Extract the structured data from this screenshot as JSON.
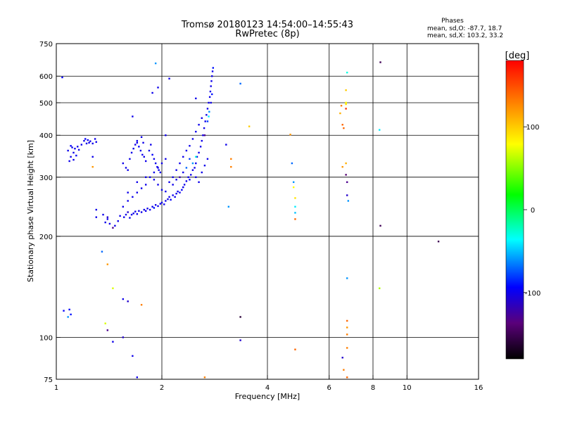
{
  "header": {
    "title_line1": "Tromsø 20180123 14:54:00–14:55:43",
    "title_line2": "RwPretec (8p)",
    "phase_title": "Phases",
    "phase_line1": "mean, sd,O: -87.7, 18.7",
    "phase_line2": "mean, sd,X: 103.2, 33.2"
  },
  "colorbar": {
    "label": "[deg]",
    "range": [
      -180,
      180
    ],
    "ticks": [
      100,
      0,
      -100
    ]
  },
  "chart_data": {
    "type": "scatter",
    "title": "Tromsø 20180123 14:54:00–14:55:43",
    "subtitle": "RwPretec (8p)",
    "xlabel": "Frequency [MHz]",
    "ylabel": "Stationary phase Virtual Height [km]",
    "x_scale": "log",
    "y_scale": "log",
    "xlim": [
      1,
      16
    ],
    "ylim": [
      75,
      750
    ],
    "xticks": [
      1,
      2,
      4,
      6,
      8,
      10,
      16
    ],
    "yticks": [
      75,
      100,
      200,
      300,
      400,
      500,
      600,
      750
    ],
    "x_gridlines": [
      2,
      4,
      6,
      8,
      10
    ],
    "y_gridlines": [
      100,
      200,
      300,
      400,
      500,
      600
    ],
    "grid": true,
    "color_scale": "phase in degrees, -180 (black) to +180 (red)",
    "series": [
      {
        "points": [
          [
            1.04,
            595,
            -95
          ],
          [
            1.05,
            120,
            -95
          ],
          [
            1.08,
            360,
            -100
          ],
          [
            1.09,
            335,
            -100
          ],
          [
            1.1,
            372,
            -95
          ],
          [
            1.1,
            345,
            -100
          ],
          [
            1.11,
            368,
            -100
          ],
          [
            1.12,
            338,
            -100
          ],
          [
            1.12,
            355,
            -100
          ],
          [
            1.13,
            365,
            -100
          ],
          [
            1.14,
            348,
            -95
          ],
          [
            1.15,
            370,
            -100
          ],
          [
            1.16,
            362,
            -100
          ],
          [
            1.08,
            115,
            -60
          ],
          [
            1.09,
            121,
            -95
          ],
          [
            1.1,
            117,
            -90
          ],
          [
            1.18,
            375,
            -100
          ],
          [
            1.2,
            385,
            -100
          ],
          [
            1.21,
            390,
            -95
          ],
          [
            1.22,
            378,
            -100
          ],
          [
            1.23,
            387,
            -100
          ],
          [
            1.24,
            380,
            -100
          ],
          [
            1.25,
            384,
            -100
          ],
          [
            1.27,
            378,
            -100
          ],
          [
            1.29,
            390,
            -100
          ],
          [
            1.3,
            382,
            -100
          ],
          [
            1.27,
            345,
            -100
          ],
          [
            1.27,
            322,
            120
          ],
          [
            1.3,
            240,
            -100
          ],
          [
            1.3,
            228,
            -100
          ],
          [
            1.36,
            232,
            -100
          ],
          [
            1.38,
            220,
            -100
          ],
          [
            1.4,
            228,
            -110
          ],
          [
            1.4,
            225,
            -100
          ],
          [
            1.42,
            218,
            -100
          ],
          [
            1.45,
            212,
            -130
          ],
          [
            1.47,
            215,
            -100
          ],
          [
            1.5,
            222,
            -100
          ],
          [
            1.52,
            230,
            -100
          ],
          [
            1.56,
            228,
            -100
          ],
          [
            1.58,
            232,
            -100
          ],
          [
            1.6,
            236,
            -110
          ],
          [
            1.62,
            227,
            -100
          ],
          [
            1.64,
            232,
            -100
          ],
          [
            1.66,
            234,
            -100
          ],
          [
            1.68,
            237,
            -100
          ],
          [
            1.7,
            233,
            -100
          ],
          [
            1.72,
            238,
            -100
          ],
          [
            1.75,
            236,
            -100
          ],
          [
            1.78,
            240,
            -100
          ],
          [
            1.8,
            238,
            -100
          ],
          [
            1.82,
            242,
            -100
          ],
          [
            1.85,
            240,
            -100
          ],
          [
            1.88,
            245,
            -100
          ],
          [
            1.9,
            243,
            -90
          ],
          [
            1.92,
            248,
            -100
          ],
          [
            1.95,
            246,
            -100
          ],
          [
            1.98,
            250,
            -100
          ],
          [
            2.0,
            252,
            -100
          ],
          [
            2.03,
            249,
            -100
          ],
          [
            2.05,
            255,
            -100
          ],
          [
            2.08,
            258,
            -100
          ],
          [
            2.1,
            262,
            -100
          ],
          [
            2.12,
            257,
            -95
          ],
          [
            2.15,
            265,
            -100
          ],
          [
            2.18,
            262,
            -100
          ],
          [
            2.2,
            268,
            -100
          ],
          [
            2.22,
            272,
            -100
          ],
          [
            2.25,
            270,
            -100
          ],
          [
            2.28,
            275,
            -95
          ],
          [
            2.3,
            280,
            -100
          ],
          [
            2.32,
            285,
            -100
          ],
          [
            2.35,
            292,
            -100
          ],
          [
            2.38,
            300,
            -100
          ],
          [
            2.4,
            295,
            -95
          ],
          [
            2.42,
            305,
            -100
          ],
          [
            2.45,
            315,
            -100
          ],
          [
            2.48,
            320,
            -100
          ],
          [
            2.5,
            330,
            -100
          ],
          [
            2.52,
            345,
            -100
          ],
          [
            2.55,
            355,
            -100
          ],
          [
            2.58,
            370,
            -100
          ],
          [
            2.6,
            385,
            -100
          ],
          [
            2.62,
            400,
            -100
          ],
          [
            2.64,
            420,
            -100
          ],
          [
            2.66,
            440,
            -100
          ],
          [
            2.68,
            460,
            -100
          ],
          [
            2.7,
            480,
            -100
          ],
          [
            2.72,
            500,
            -100
          ],
          [
            2.74,
            520,
            -100
          ],
          [
            2.75,
            540,
            -100
          ],
          [
            2.76,
            560,
            -100
          ],
          [
            2.77,
            580,
            -100
          ],
          [
            2.78,
            600,
            -100
          ],
          [
            2.79,
            620,
            -100
          ],
          [
            2.8,
            635,
            -90
          ],
          [
            2.7,
            440,
            -80
          ],
          [
            2.73,
            470,
            -60
          ],
          [
            2.76,
            500,
            -100
          ],
          [
            2.78,
            530,
            -90
          ],
          [
            2.72,
            455,
            -40
          ],
          [
            2.65,
            400,
            -130
          ],
          [
            1.55,
            245,
            -100
          ],
          [
            1.6,
            255,
            -100
          ],
          [
            1.65,
            262,
            -100
          ],
          [
            1.7,
            270,
            -100
          ],
          [
            1.75,
            278,
            -100
          ],
          [
            1.8,
            285,
            -100
          ],
          [
            1.85,
            300,
            -100
          ],
          [
            1.9,
            310,
            -100
          ],
          [
            1.95,
            320,
            -100
          ],
          [
            2.0,
            330,
            -100
          ],
          [
            2.05,
            340,
            -100
          ],
          [
            1.6,
            270,
            -100
          ],
          [
            1.7,
            290,
            -100
          ],
          [
            1.8,
            300,
            -100
          ],
          [
            1.9,
            295,
            -100
          ],
          [
            1.95,
            285,
            -100
          ],
          [
            2.0,
            275,
            -100
          ],
          [
            2.1,
            290,
            -100
          ],
          [
            2.15,
            300,
            -100
          ],
          [
            2.2,
            315,
            -100
          ],
          [
            2.25,
            330,
            -100
          ],
          [
            2.3,
            345,
            -100
          ],
          [
            2.35,
            360,
            -100
          ],
          [
            2.4,
            372,
            -100
          ],
          [
            2.45,
            390,
            -100
          ],
          [
            2.5,
            410,
            -100
          ],
          [
            2.55,
            430,
            -100
          ],
          [
            2.6,
            450,
            -100
          ],
          [
            2.4,
            340,
            -80
          ],
          [
            2.45,
            330,
            -60
          ],
          [
            2.5,
            345,
            -30
          ],
          [
            2.35,
            320,
            -70
          ],
          [
            2.25,
            300,
            -120
          ],
          [
            2.15,
            285,
            -100
          ],
          [
            2.05,
            272,
            -100
          ],
          [
            1.62,
            340,
            -100
          ],
          [
            1.64,
            355,
            -100
          ],
          [
            1.66,
            365,
            -100
          ],
          [
            1.68,
            375,
            -100
          ],
          [
            1.7,
            385,
            -100
          ],
          [
            1.72,
            370,
            -95
          ],
          [
            1.74,
            360,
            -100
          ],
          [
            1.76,
            350,
            -100
          ],
          [
            1.78,
            345,
            -100
          ],
          [
            1.8,
            335,
            -100
          ],
          [
            1.75,
            395,
            -100
          ],
          [
            1.77,
            380,
            -100
          ],
          [
            1.84,
            360,
            -100
          ],
          [
            1.86,
            375,
            -100
          ],
          [
            1.88,
            350,
            -95
          ],
          [
            1.9,
            340,
            -100
          ],
          [
            1.92,
            330,
            -100
          ],
          [
            1.94,
            322,
            -100
          ],
          [
            1.96,
            315,
            -100
          ],
          [
            1.98,
            310,
            -100
          ],
          [
            1.65,
            455,
            -100
          ],
          [
            1.7,
            380,
            -100
          ],
          [
            1.88,
            535,
            -100
          ],
          [
            1.95,
            555,
            -100
          ],
          [
            2.1,
            590,
            -100
          ],
          [
            1.92,
            655,
            -60
          ],
          [
            2.05,
            400,
            -100
          ],
          [
            2.5,
            515,
            -100
          ],
          [
            1.55,
            330,
            -100
          ],
          [
            1.58,
            320,
            -100
          ],
          [
            1.6,
            315,
            -100
          ],
          [
            2.2,
            295,
            -100
          ],
          [
            2.3,
            310,
            -100
          ],
          [
            2.5,
            300,
            -100
          ],
          [
            2.55,
            290,
            -100
          ],
          [
            2.6,
            310,
            -100
          ],
          [
            2.65,
            325,
            -100
          ],
          [
            2.7,
            340,
            -100
          ],
          [
            1.35,
            180,
            -70
          ],
          [
            1.4,
            165,
            120
          ],
          [
            1.45,
            140,
            70
          ],
          [
            1.55,
            130,
            -100
          ],
          [
            1.6,
            128,
            -110
          ],
          [
            1.75,
            125,
            130
          ],
          [
            1.38,
            110,
            70
          ],
          [
            1.4,
            105,
            -130
          ],
          [
            1.45,
            97,
            -100
          ],
          [
            1.55,
            100,
            -110
          ],
          [
            1.65,
            88,
            -100
          ],
          [
            1.7,
            76,
            -100
          ],
          [
            2.65,
            76,
            130
          ],
          [
            3.05,
            375,
            -100
          ],
          [
            3.1,
            245,
            -60
          ],
          [
            3.15,
            340,
            130
          ],
          [
            3.15,
            322,
            130
          ],
          [
            3.35,
            570,
            -70
          ],
          [
            3.35,
            115,
            -160
          ],
          [
            3.35,
            98,
            -110
          ],
          [
            3.55,
            425,
            100
          ],
          [
            4.65,
            402,
            120
          ],
          [
            4.7,
            330,
            -70
          ],
          [
            4.75,
            290,
            -60
          ],
          [
            4.75,
            280,
            80
          ],
          [
            4.8,
            260,
            90
          ],
          [
            4.8,
            245,
            -40
          ],
          [
            4.8,
            235,
            -50
          ],
          [
            4.8,
            225,
            140
          ],
          [
            4.8,
            92,
            140
          ],
          [
            6.45,
            465,
            110
          ],
          [
            6.55,
            430,
            140
          ],
          [
            6.6,
            420,
            140
          ],
          [
            6.5,
            490,
            130
          ],
          [
            6.7,
            545,
            100
          ],
          [
            6.7,
            500,
            90
          ],
          [
            6.7,
            495,
            90
          ],
          [
            6.7,
            500,
            80
          ],
          [
            6.7,
            480,
            160
          ],
          [
            6.55,
            322,
            120
          ],
          [
            6.7,
            330,
            110
          ],
          [
            6.7,
            305,
            -140
          ],
          [
            6.75,
            290,
            -130
          ],
          [
            6.75,
            265,
            -110
          ],
          [
            6.8,
            255,
            -60
          ],
          [
            6.75,
            615,
            -30
          ],
          [
            6.75,
            150,
            -60
          ],
          [
            6.75,
            112,
            140
          ],
          [
            6.75,
            107,
            120
          ],
          [
            6.75,
            102,
            130
          ],
          [
            6.75,
            93,
            130
          ],
          [
            6.55,
            87,
            -110
          ],
          [
            6.6,
            80,
            130
          ],
          [
            6.75,
            76,
            140
          ],
          [
            8.35,
            415,
            -40
          ],
          [
            8.4,
            215,
            -150
          ],
          [
            8.35,
            140,
            60
          ],
          [
            8.4,
            660,
            -150
          ],
          [
            12.3,
            193,
            -150
          ]
        ]
      }
    ]
  }
}
